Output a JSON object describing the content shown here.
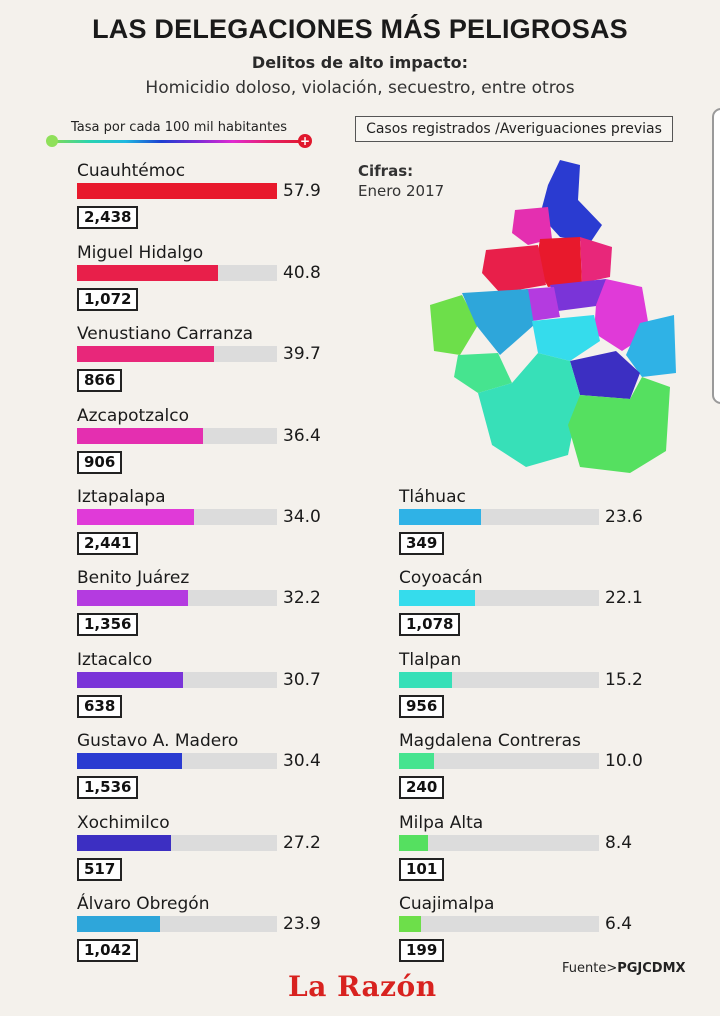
{
  "title": "LAS DELEGACIONES MÁS PELIGROSAS",
  "subtitle": "Delitos de alto impacto:",
  "subtitle2": "Homicidio doloso, violación, secuestro, entre otros",
  "legend": {
    "rate_label": "Tasa por cada 100 mil habitantes",
    "cases_label": "Casos registrados /Averiguaciones previas",
    "min_symbol": "",
    "max_symbol": "+"
  },
  "cifras": {
    "label": "Cifras:",
    "date": "Enero 2017"
  },
  "source": {
    "prefix": "Fuente>",
    "name": "PGJCDMX"
  },
  "logo": "La Razón",
  "colors": {
    "background": "#f4f1ec",
    "bar_track": "#dcdcdc",
    "brand_red": "#d8221f"
  },
  "chart_data": {
    "type": "bar",
    "title": "LAS DELEGACIONES MÁS PELIGROSAS",
    "xlabel": "Tasa por cada 100 mil habitantes",
    "ylabel": "",
    "xlim": [
      0,
      57.9
    ],
    "categories": [
      "Cuauhtémoc",
      "Miguel Hidalgo",
      "Venustiano Carranza",
      "Azcapotzalco",
      "Iztapalapa",
      "Benito Juárez",
      "Iztacalco",
      "Gustavo A. Madero",
      "Xochimilco",
      "Álvaro Obregón",
      "Tláhuac",
      "Coyoacán",
      "Tlalpan",
      "Magdalena Contreras",
      "Milpa Alta",
      "Cuajimalpa"
    ],
    "series": [
      {
        "name": "Tasa por cada 100 mil habitantes",
        "values": [
          57.9,
          40.8,
          39.7,
          36.4,
          34.0,
          32.2,
          30.7,
          30.4,
          27.2,
          23.9,
          23.6,
          22.1,
          15.2,
          10.0,
          8.4,
          6.4
        ],
        "labels": [
          "57.9",
          "40.8",
          "39.7",
          "36.4",
          "34.0",
          "32.2",
          "30.7",
          "30.4",
          "27.2",
          "23.9",
          "23.6",
          "22.1",
          "15.2",
          "10.0",
          "8.4",
          "6.4"
        ]
      },
      {
        "name": "Casos registrados /Averiguaciones previas",
        "values": [
          2438,
          1072,
          866,
          906,
          2441,
          1356,
          638,
          1536,
          517,
          1042,
          349,
          1078,
          956,
          240,
          101,
          199
        ],
        "labels": [
          "2,438",
          "1,072",
          "866",
          "906",
          "2,441",
          "1,356",
          "638",
          "1,536",
          "517",
          "1,042",
          "349",
          "1,078",
          "956",
          "240",
          "101",
          "199"
        ]
      }
    ],
    "bar_colors": [
      "#e8192c",
      "#e81f4a",
      "#e8277a",
      "#e42fb0",
      "#e03ad8",
      "#b43be0",
      "#7a34d8",
      "#2a3bd1",
      "#3c2fc2",
      "#2ea6da",
      "#2fb2e6",
      "#35dcec",
      "#37e0b8",
      "#46e48f",
      "#55e060",
      "#6ddf4a"
    ]
  }
}
